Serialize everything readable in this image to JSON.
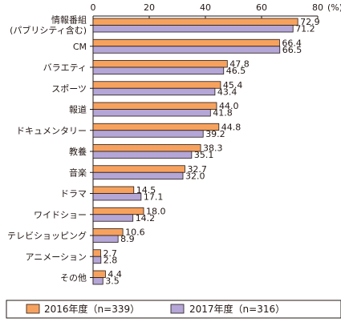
{
  "chart_data": {
    "type": "bar",
    "orientation": "horizontal",
    "categories": [
      "情報番組\n(パブリシティ含む)",
      "CM",
      "バラエティ",
      "スポーツ",
      "報道",
      "ドキュメンタリー",
      "教養",
      "音楽",
      "ドラマ",
      "ワイドショー",
      "テレビショッピング",
      "アニメーション",
      "その他"
    ],
    "series": [
      {
        "name": "2016年度（n=339）",
        "color": "#F6A25E",
        "values": [
          72.9,
          66.4,
          47.8,
          45.4,
          44.0,
          44.8,
          38.3,
          32.7,
          14.5,
          18.0,
          10.6,
          2.7,
          4.4
        ]
      },
      {
        "name": "2017年度（n=316）",
        "color": "#B4A6D6",
        "values": [
          71.2,
          66.5,
          46.5,
          43.4,
          41.8,
          39.2,
          35.1,
          32.0,
          17.1,
          14.2,
          8.9,
          2.8,
          3.5
        ]
      }
    ],
    "xlim": [
      0,
      80
    ],
    "xticks": [
      "0",
      "20",
      "40",
      "60",
      "80"
    ],
    "unit_label": "(%)",
    "grid": false,
    "legend_position": "bottom"
  }
}
